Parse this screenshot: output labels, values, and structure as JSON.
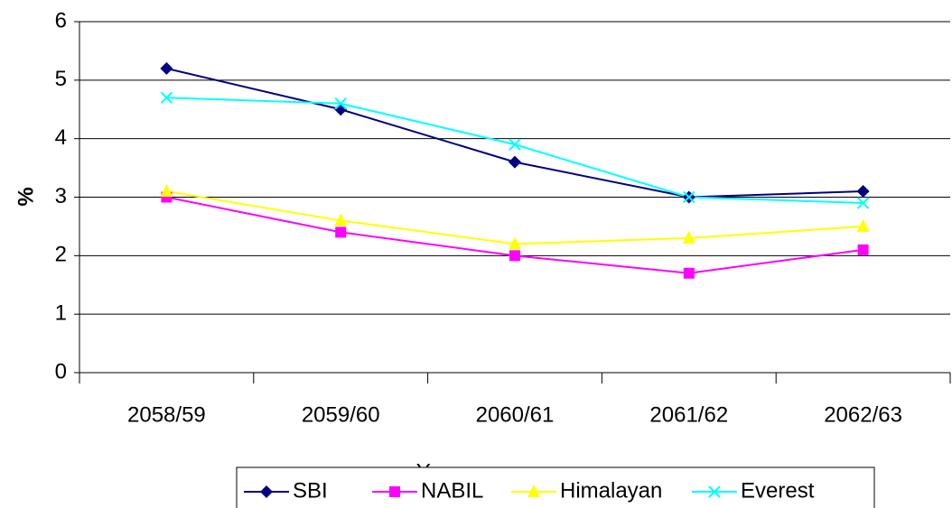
{
  "chart_data": {
    "type": "line",
    "categories": [
      "2058/59",
      "2059/60",
      "2060/61",
      "2061/62",
      "2062/63"
    ],
    "series": [
      {
        "name": "SBI",
        "color": "#000080",
        "marker": "diamond",
        "values": [
          5.2,
          4.5,
          3.6,
          3.0,
          3.1
        ]
      },
      {
        "name": "NABIL",
        "color": "#ff00ff",
        "marker": "square",
        "values": [
          3.0,
          2.4,
          2.0,
          1.7,
          2.1
        ]
      },
      {
        "name": "Himalayan",
        "color": "#ffff00",
        "marker": "triangle",
        "values": [
          3.1,
          2.6,
          2.2,
          2.3,
          2.5
        ]
      },
      {
        "name": "Everest",
        "color": "#00ffff",
        "marker": "x",
        "values": [
          4.7,
          4.6,
          3.9,
          3.0,
          2.9
        ]
      }
    ],
    "xlabel": "Year",
    "ylabel": "%",
    "ylim": [
      0,
      6
    ],
    "yticks": [
      0,
      1,
      2,
      3,
      4,
      5,
      6
    ],
    "grid": true,
    "legend": "bottom"
  }
}
